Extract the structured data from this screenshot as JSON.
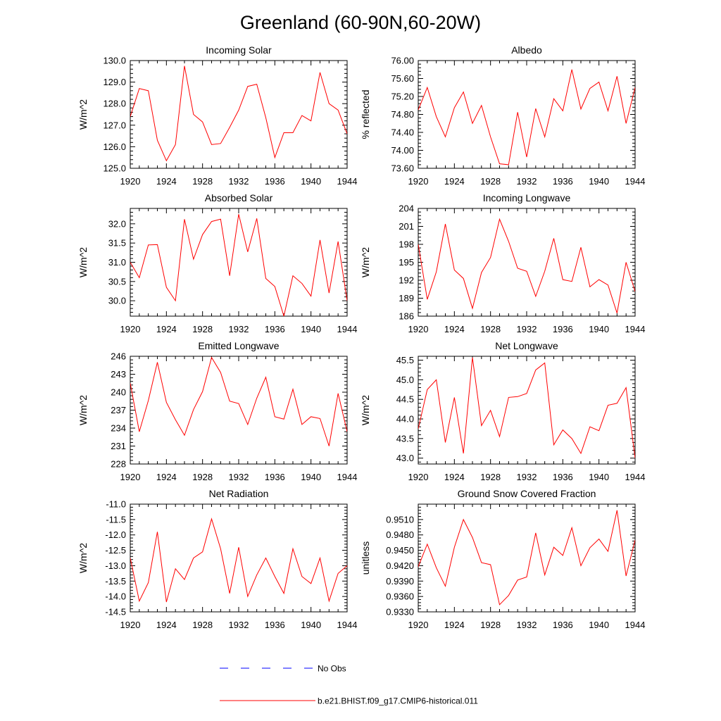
{
  "figure_title": "Greenland (60-90N,60-20W)",
  "colors": {
    "model": "#ff0000",
    "obs": "#0000ff",
    "axis": "#000000"
  },
  "legend": {
    "entries": [
      {
        "label": "No Obs",
        "style": "dashed",
        "color": "#0000ff"
      },
      {
        "label": "b.e21.BHIST.f09_g17.CMIP6-historical.011",
        "style": "solid",
        "color": "#ff0000"
      }
    ]
  },
  "chart_data": [
    {
      "type": "line",
      "title": "Incoming Solar",
      "ylabel": "W/m^2",
      "xlim": [
        1920,
        1944
      ],
      "ylim": [
        125.0,
        130.0
      ],
      "x_ticks": [
        "1920",
        "1924",
        "1928",
        "1932",
        "1936",
        "1940",
        "1944"
      ],
      "y_ticks": [
        "125.0",
        "126.0",
        "127.0",
        "128.0",
        "129.0",
        "130.0"
      ],
      "series": [
        {
          "x": [
            1920,
            1921,
            1922,
            1923,
            1924,
            1925,
            1926,
            1927,
            1928,
            1929,
            1930,
            1931,
            1932,
            1933,
            1934,
            1935,
            1936,
            1937,
            1938,
            1939,
            1940,
            1941,
            1942,
            1943,
            1944
          ],
          "y": [
            127.4,
            128.7,
            128.6,
            126.3,
            125.35,
            126.1,
            129.75,
            127.5,
            127.15,
            126.1,
            126.15,
            126.9,
            127.7,
            128.8,
            128.9,
            127.35,
            125.5,
            126.65,
            126.65,
            127.45,
            127.2,
            129.45,
            128.0,
            127.7,
            126.6
          ]
        }
      ]
    },
    {
      "type": "line",
      "title": "Albedo",
      "ylabel": "% reflected",
      "xlim": [
        1920,
        1944
      ],
      "ylim": [
        73.6,
        76.0
      ],
      "x_ticks": [
        "1920",
        "1924",
        "1928",
        "1932",
        "1936",
        "1940",
        "1944"
      ],
      "y_ticks": [
        "73.60",
        "74.00",
        "74.40",
        "74.80",
        "75.20",
        "75.60",
        "76.00"
      ],
      "series": [
        {
          "x": [
            1920,
            1921,
            1922,
            1923,
            1924,
            1925,
            1926,
            1927,
            1928,
            1929,
            1930,
            1931,
            1932,
            1933,
            1934,
            1935,
            1936,
            1937,
            1938,
            1939,
            1940,
            1941,
            1942,
            1943,
            1944
          ],
          "y": [
            74.9,
            75.4,
            74.75,
            74.3,
            74.95,
            75.3,
            74.6,
            75.0,
            74.3,
            73.7,
            73.68,
            74.85,
            73.85,
            74.93,
            74.3,
            75.15,
            74.88,
            75.8,
            74.92,
            75.38,
            75.52,
            74.88,
            75.65,
            74.6,
            75.4
          ]
        }
      ]
    },
    {
      "type": "line",
      "title": "Absorbed Solar",
      "ylabel": "W/m^2",
      "xlim": [
        1920,
        1944
      ],
      "ylim": [
        29.6,
        32.4
      ],
      "x_ticks": [
        "1920",
        "1924",
        "1928",
        "1932",
        "1936",
        "1940",
        "1944"
      ],
      "y_ticks": [
        "30.0",
        "30.5",
        "31.0",
        "31.5",
        "32.0"
      ],
      "series": [
        {
          "x": [
            1920,
            1921,
            1922,
            1923,
            1924,
            1925,
            1926,
            1927,
            1928,
            1929,
            1930,
            1931,
            1932,
            1933,
            1934,
            1935,
            1936,
            1937,
            1938,
            1939,
            1940,
            1941,
            1942,
            1943,
            1944
          ],
          "y": [
            31.0,
            30.6,
            31.45,
            31.46,
            30.35,
            30.0,
            32.12,
            31.08,
            31.72,
            32.06,
            32.12,
            30.65,
            32.25,
            31.27,
            32.14,
            30.58,
            30.37,
            29.6,
            30.65,
            30.45,
            30.12,
            31.58,
            30.2,
            31.54,
            30.0
          ]
        }
      ]
    },
    {
      "type": "line",
      "title": "Incoming Longwave",
      "ylabel": "W/m^2",
      "xlim": [
        1920,
        1944
      ],
      "ylim": [
        186,
        204
      ],
      "x_ticks": [
        "1920",
        "1924",
        "1928",
        "1932",
        "1936",
        "1940",
        "1944"
      ],
      "y_ticks": [
        "186",
        "189",
        "192",
        "195",
        "198",
        "201",
        "204"
      ],
      "series": [
        {
          "x": [
            1920,
            1921,
            1922,
            1923,
            1924,
            1925,
            1926,
            1927,
            1928,
            1929,
            1930,
            1931,
            1932,
            1933,
            1934,
            1935,
            1936,
            1937,
            1938,
            1939,
            1940,
            1941,
            1942,
            1943,
            1944
          ],
          "y": [
            198.0,
            188.8,
            193.4,
            201.4,
            193.7,
            192.3,
            187.3,
            193.3,
            195.8,
            202.2,
            198.5,
            194.0,
            193.5,
            189.3,
            193.5,
            199.0,
            192.1,
            191.8,
            197.5,
            190.9,
            192.1,
            191.2,
            186.5,
            195.0,
            190.1
          ]
        }
      ]
    },
    {
      "type": "line",
      "title": "Emitted Longwave",
      "ylabel": "W/m^2",
      "xlim": [
        1920,
        1944
      ],
      "ylim": [
        228,
        246
      ],
      "x_ticks": [
        "1920",
        "1924",
        "1928",
        "1932",
        "1936",
        "1940",
        "1944"
      ],
      "y_ticks": [
        "228",
        "231",
        "234",
        "237",
        "240",
        "243",
        "246"
      ],
      "series": [
        {
          "x": [
            1920,
            1921,
            1922,
            1923,
            1924,
            1925,
            1926,
            1927,
            1928,
            1929,
            1930,
            1931,
            1932,
            1933,
            1934,
            1935,
            1936,
            1937,
            1938,
            1939,
            1940,
            1941,
            1942,
            1943,
            1944
          ],
          "y": [
            241.5,
            233.4,
            238.6,
            245.0,
            238.3,
            235.4,
            232.8,
            237.1,
            240.1,
            245.8,
            243.3,
            238.5,
            238.1,
            234.6,
            239.0,
            242.5,
            235.9,
            235.5,
            240.5,
            234.6,
            235.9,
            235.6,
            231.0,
            239.8,
            233.4
          ]
        }
      ]
    },
    {
      "type": "line",
      "title": "Net Longwave",
      "ylabel": "W/m^2",
      "xlim": [
        1920,
        1944
      ],
      "ylim": [
        42.85,
        45.6
      ],
      "x_ticks": [
        "1920",
        "1924",
        "1928",
        "1932",
        "1936",
        "1940",
        "1944"
      ],
      "y_ticks": [
        "43.0",
        "43.5",
        "44.0",
        "44.5",
        "45.0",
        "45.5"
      ],
      "series": [
        {
          "x": [
            1920,
            1921,
            1922,
            1923,
            1924,
            1925,
            1926,
            1927,
            1928,
            1929,
            1930,
            1931,
            1932,
            1933,
            1934,
            1935,
            1936,
            1937,
            1938,
            1939,
            1940,
            1941,
            1942,
            1943,
            1944
          ],
          "y": [
            43.75,
            44.75,
            45.0,
            43.4,
            44.55,
            43.12,
            45.57,
            43.83,
            44.22,
            43.55,
            44.55,
            44.57,
            44.65,
            45.25,
            45.43,
            43.34,
            43.72,
            43.5,
            43.12,
            43.8,
            43.7,
            44.35,
            44.4,
            44.8,
            43.0
          ]
        }
      ]
    },
    {
      "type": "line",
      "title": "Net Radiation",
      "ylabel": "W/m^2",
      "xlim": [
        1920,
        1944
      ],
      "ylim": [
        -14.5,
        -11.0
      ],
      "x_ticks": [
        "1920",
        "1924",
        "1928",
        "1932",
        "1936",
        "1940",
        "1944"
      ],
      "y_ticks": [
        "-14.5",
        "-14.0",
        "-13.5",
        "-13.0",
        "-12.5",
        "-12.0",
        "-11.5",
        "-11.0"
      ],
      "series": [
        {
          "x": [
            1920,
            1921,
            1922,
            1923,
            1924,
            1925,
            1926,
            1927,
            1928,
            1929,
            1930,
            1931,
            1932,
            1933,
            1934,
            1935,
            1936,
            1937,
            1938,
            1939,
            1940,
            1941,
            1942,
            1943,
            1944
          ],
          "y": [
            -12.75,
            -14.15,
            -13.55,
            -11.9,
            -14.18,
            -13.1,
            -13.45,
            -12.75,
            -12.55,
            -11.48,
            -12.45,
            -13.9,
            -12.4,
            -14.0,
            -13.3,
            -12.75,
            -13.35,
            -13.9,
            -12.45,
            -13.35,
            -13.58,
            -12.75,
            -14.15,
            -13.25,
            -13.0
          ]
        }
      ]
    },
    {
      "type": "line",
      "title": "Ground Snow Covered Fraction",
      "ylabel": "unitless",
      "xlim": [
        1920,
        1944
      ],
      "ylim": [
        0.933,
        0.954
      ],
      "x_ticks": [
        "1920",
        "1924",
        "1928",
        "1932",
        "1936",
        "1940",
        "1944"
      ],
      "y_ticks": [
        "0.9330",
        "0.9360",
        "0.9390",
        "0.9420",
        "0.9450",
        "0.9480",
        "0.9510"
      ],
      "series": [
        {
          "x": [
            1920,
            1921,
            1922,
            1923,
            1924,
            1925,
            1926,
            1927,
            1928,
            1929,
            1930,
            1931,
            1932,
            1933,
            1934,
            1935,
            1936,
            1937,
            1938,
            1939,
            1940,
            1941,
            1942,
            1943,
            1944
          ],
          "y": [
            0.9418,
            0.9462,
            0.9416,
            0.938,
            0.9456,
            0.951,
            0.9475,
            0.9426,
            0.9422,
            0.9344,
            0.9362,
            0.9392,
            0.9398,
            0.9484,
            0.9402,
            0.9456,
            0.944,
            0.9494,
            0.942,
            0.9455,
            0.9472,
            0.9448,
            0.9528,
            0.94,
            0.947
          ]
        }
      ]
    }
  ]
}
